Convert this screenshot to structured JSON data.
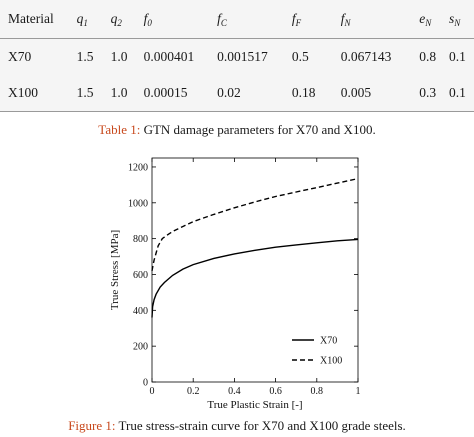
{
  "table": {
    "headers": [
      {
        "base": "Material",
        "sub": "",
        "math": false
      },
      {
        "base": "q",
        "sub": "1",
        "math": true
      },
      {
        "base": "q",
        "sub": "2",
        "math": true
      },
      {
        "base": "f",
        "sub": "0",
        "math": true
      },
      {
        "base": "f",
        "sub": "C",
        "math": true
      },
      {
        "base": "f",
        "sub": "F",
        "math": true
      },
      {
        "base": "f",
        "sub": "N",
        "math": true
      },
      {
        "base": "e",
        "sub": "N",
        "math": true
      },
      {
        "base": "s",
        "sub": "N",
        "math": true
      }
    ],
    "rows": [
      [
        "X70",
        "1.5",
        "1.0",
        "0.000401",
        "0.001517",
        "0.5",
        "0.067143",
        "0.8",
        "0.1"
      ],
      [
        "X100",
        "1.5",
        "1.0",
        "0.00015",
        "0.02",
        "0.18",
        "0.005",
        "0.3",
        "0.1"
      ]
    ],
    "caption_label": "Table 1:",
    "caption_text": " GTN damage parameters for X70 and X100."
  },
  "figure": {
    "caption_label": "Figure 1:",
    "caption_text": " True stress-strain curve for X70 and X100 grade steels."
  },
  "chart_data": {
    "type": "line",
    "xlabel": "True Plastic Strain [-]",
    "ylabel": "True Stress [MPa]",
    "xlim": [
      0,
      1
    ],
    "ylim": [
      0,
      1250
    ],
    "xticks": [
      0,
      0.2,
      0.4,
      0.6,
      0.8,
      1
    ],
    "xtick_labels": [
      "0",
      "0.2",
      "0.4",
      "0.6",
      "0.8",
      "1"
    ],
    "yticks": [
      0,
      200,
      400,
      600,
      800,
      1000,
      1200
    ],
    "ytick_labels": [
      "0",
      "200",
      "400",
      "600",
      "800",
      "1000",
      "1200"
    ],
    "grid": false,
    "legend_position": "bottom-right",
    "series": [
      {
        "name": "X70",
        "style": "solid",
        "x": [
          0,
          0.003,
          0.01,
          0.02,
          0.04,
          0.06,
          0.1,
          0.15,
          0.2,
          0.3,
          0.4,
          0.5,
          0.6,
          0.7,
          0.8,
          0.9,
          1.0
        ],
        "y": [
          360,
          420,
          460,
          490,
          530,
          555,
          595,
          630,
          655,
          690,
          715,
          735,
          752,
          765,
          777,
          788,
          796
        ]
      },
      {
        "name": "X100",
        "style": "dashed",
        "x": [
          0,
          0.005,
          0.01,
          0.02,
          0.03,
          0.05,
          0.08,
          0.1,
          0.15,
          0.2,
          0.3,
          0.4,
          0.5,
          0.6,
          0.7,
          0.8,
          0.9,
          1.0
        ],
        "y": [
          620,
          650,
          680,
          720,
          760,
          800,
          825,
          840,
          868,
          895,
          935,
          972,
          1005,
          1035,
          1060,
          1085,
          1110,
          1135
        ]
      }
    ]
  }
}
